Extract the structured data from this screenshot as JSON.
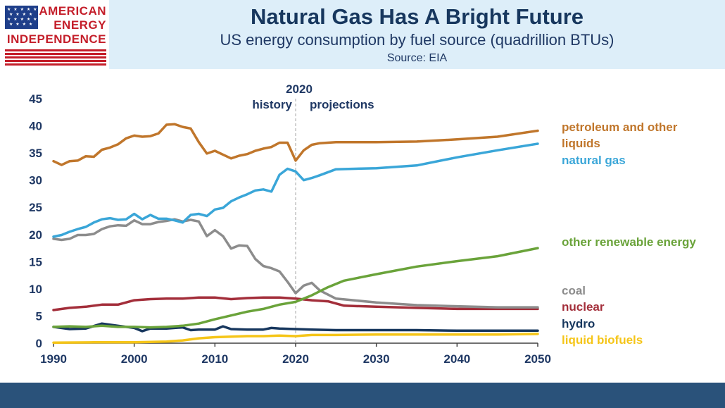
{
  "logo": {
    "line1": "AMERICAN",
    "line2": "ENERGY",
    "line3": "INDEPENDENCE"
  },
  "header": {
    "title": "Natural Gas Has A Bright Future",
    "subtitle": "US energy consumption by fuel source (quadrillion BTUs)",
    "source": "Source: EIA"
  },
  "colors": {
    "petroleum": "#c0762b",
    "natural_gas": "#3aa6d8",
    "renewable": "#6aa33a",
    "coal": "#8c8c8c",
    "nuclear": "#a32e3a",
    "hydro": "#17375e",
    "biofuels": "#f5c518",
    "divider": "#a6a6a6"
  },
  "chart_data": {
    "type": "line",
    "title": "US energy consumption by fuel source (quadrillion BTUs)",
    "xlabel": "",
    "ylabel": "",
    "xlim": [
      1990,
      2050
    ],
    "ylim": [
      0,
      45
    ],
    "x_ticks": [
      "1990",
      "2000",
      "2010",
      "2020",
      "2030",
      "2040",
      "2050"
    ],
    "y_ticks": [
      "0",
      "5",
      "10",
      "15",
      "20",
      "25",
      "30",
      "35",
      "40",
      "45"
    ],
    "annotations": {
      "year": "2020",
      "left": "history",
      "right": "projections",
      "divider_x": 2020
    },
    "series": [
      {
        "name": "petroleum and other liquids",
        "label_lines": [
          "petroleum and other",
          "liquids"
        ],
        "color_key": "petroleum",
        "points": [
          [
            1990,
            33.5
          ],
          [
            1991,
            32.8
          ],
          [
            1992,
            33.5
          ],
          [
            1993,
            33.6
          ],
          [
            1994,
            34.4
          ],
          [
            1995,
            34.3
          ],
          [
            1996,
            35.6
          ],
          [
            1997,
            36.0
          ],
          [
            1998,
            36.6
          ],
          [
            1999,
            37.7
          ],
          [
            2000,
            38.2
          ],
          [
            2001,
            38.0
          ],
          [
            2002,
            38.1
          ],
          [
            2003,
            38.6
          ],
          [
            2004,
            40.2
          ],
          [
            2005,
            40.3
          ],
          [
            2006,
            39.8
          ],
          [
            2007,
            39.5
          ],
          [
            2008,
            37.0
          ],
          [
            2009,
            34.9
          ],
          [
            2010,
            35.4
          ],
          [
            2011,
            34.7
          ],
          [
            2012,
            34.0
          ],
          [
            2013,
            34.5
          ],
          [
            2014,
            34.8
          ],
          [
            2015,
            35.4
          ],
          [
            2016,
            35.8
          ],
          [
            2017,
            36.1
          ],
          [
            2018,
            36.9
          ],
          [
            2019,
            36.9
          ],
          [
            2020,
            33.6
          ],
          [
            2021,
            35.5
          ],
          [
            2022,
            36.5
          ],
          [
            2023,
            36.8
          ],
          [
            2025,
            37.0
          ],
          [
            2030,
            37.0
          ],
          [
            2035,
            37.1
          ],
          [
            2040,
            37.5
          ],
          [
            2045,
            38.0
          ],
          [
            2050,
            39.1
          ]
        ]
      },
      {
        "name": "natural gas",
        "label_lines": [
          "natural gas"
        ],
        "color_key": "natural_gas",
        "points": [
          [
            1990,
            19.6
          ],
          [
            1991,
            19.9
          ],
          [
            1992,
            20.5
          ],
          [
            1993,
            21.0
          ],
          [
            1994,
            21.4
          ],
          [
            1995,
            22.2
          ],
          [
            1996,
            22.8
          ],
          [
            1997,
            23.0
          ],
          [
            1998,
            22.7
          ],
          [
            1999,
            22.8
          ],
          [
            2000,
            23.8
          ],
          [
            2001,
            22.8
          ],
          [
            2002,
            23.6
          ],
          [
            2003,
            22.9
          ],
          [
            2004,
            22.9
          ],
          [
            2005,
            22.6
          ],
          [
            2006,
            22.2
          ],
          [
            2007,
            23.6
          ],
          [
            2008,
            23.8
          ],
          [
            2009,
            23.4
          ],
          [
            2010,
            24.6
          ],
          [
            2011,
            24.9
          ],
          [
            2012,
            26.1
          ],
          [
            2013,
            26.8
          ],
          [
            2014,
            27.4
          ],
          [
            2015,
            28.1
          ],
          [
            2016,
            28.3
          ],
          [
            2017,
            27.9
          ],
          [
            2018,
            31.0
          ],
          [
            2019,
            32.1
          ],
          [
            2020,
            31.6
          ],
          [
            2021,
            30.0
          ],
          [
            2022,
            30.4
          ],
          [
            2023,
            30.9
          ],
          [
            2025,
            32.0
          ],
          [
            2030,
            32.2
          ],
          [
            2035,
            32.7
          ],
          [
            2040,
            34.2
          ],
          [
            2045,
            35.5
          ],
          [
            2050,
            36.7
          ]
        ]
      },
      {
        "name": "other renewable energy",
        "label_lines": [
          "other renewable energy"
        ],
        "color_key": "renewable",
        "points": [
          [
            1990,
            3.0
          ],
          [
            1992,
            3.1
          ],
          [
            1994,
            3.0
          ],
          [
            1996,
            3.2
          ],
          [
            1998,
            3.0
          ],
          [
            2000,
            3.0
          ],
          [
            2002,
            2.9
          ],
          [
            2004,
            3.0
          ],
          [
            2006,
            3.2
          ],
          [
            2008,
            3.6
          ],
          [
            2010,
            4.4
          ],
          [
            2012,
            5.1
          ],
          [
            2014,
            5.8
          ],
          [
            2016,
            6.3
          ],
          [
            2018,
            7.1
          ],
          [
            2020,
            7.6
          ],
          [
            2022,
            8.8
          ],
          [
            2024,
            10.3
          ],
          [
            2026,
            11.5
          ],
          [
            2028,
            12.1
          ],
          [
            2030,
            12.7
          ],
          [
            2035,
            14.1
          ],
          [
            2040,
            15.1
          ],
          [
            2045,
            16.0
          ],
          [
            2050,
            17.5
          ]
        ]
      },
      {
        "name": "coal",
        "label_lines": [
          "coal"
        ],
        "color_key": "coal",
        "points": [
          [
            1990,
            19.2
          ],
          [
            1991,
            19.0
          ],
          [
            1992,
            19.2
          ],
          [
            1993,
            19.9
          ],
          [
            1994,
            19.9
          ],
          [
            1995,
            20.1
          ],
          [
            1996,
            21.0
          ],
          [
            1997,
            21.5
          ],
          [
            1998,
            21.7
          ],
          [
            1999,
            21.6
          ],
          [
            2000,
            22.6
          ],
          [
            2001,
            21.9
          ],
          [
            2002,
            21.9
          ],
          [
            2003,
            22.3
          ],
          [
            2004,
            22.5
          ],
          [
            2005,
            22.8
          ],
          [
            2006,
            22.4
          ],
          [
            2007,
            22.7
          ],
          [
            2008,
            22.4
          ],
          [
            2009,
            19.7
          ],
          [
            2010,
            20.8
          ],
          [
            2011,
            19.7
          ],
          [
            2012,
            17.4
          ],
          [
            2013,
            18.0
          ],
          [
            2014,
            17.9
          ],
          [
            2015,
            15.5
          ],
          [
            2016,
            14.2
          ],
          [
            2017,
            13.8
          ],
          [
            2018,
            13.2
          ],
          [
            2019,
            11.3
          ],
          [
            2020,
            9.2
          ],
          [
            2021,
            10.6
          ],
          [
            2022,
            11.1
          ],
          [
            2023,
            9.7
          ],
          [
            2025,
            8.2
          ],
          [
            2030,
            7.5
          ],
          [
            2035,
            7.0
          ],
          [
            2040,
            6.8
          ],
          [
            2045,
            6.6
          ],
          [
            2050,
            6.6
          ]
        ]
      },
      {
        "name": "nuclear",
        "label_lines": [
          "nuclear"
        ],
        "color_key": "nuclear",
        "points": [
          [
            1990,
            6.1
          ],
          [
            1992,
            6.5
          ],
          [
            1994,
            6.7
          ],
          [
            1996,
            7.1
          ],
          [
            1998,
            7.1
          ],
          [
            2000,
            7.9
          ],
          [
            2002,
            8.1
          ],
          [
            2004,
            8.2
          ],
          [
            2006,
            8.2
          ],
          [
            2008,
            8.4
          ],
          [
            2010,
            8.4
          ],
          [
            2012,
            8.1
          ],
          [
            2014,
            8.3
          ],
          [
            2016,
            8.4
          ],
          [
            2018,
            8.4
          ],
          [
            2020,
            8.2
          ],
          [
            2022,
            7.9
          ],
          [
            2024,
            7.7
          ],
          [
            2026,
            6.9
          ],
          [
            2030,
            6.7
          ],
          [
            2035,
            6.5
          ],
          [
            2040,
            6.3
          ],
          [
            2045,
            6.3
          ],
          [
            2050,
            6.3
          ]
        ]
      },
      {
        "name": "hydro",
        "label_lines": [
          "hydro"
        ],
        "color_key": "hydro",
        "points": [
          [
            1990,
            3.0
          ],
          [
            1992,
            2.6
          ],
          [
            1994,
            2.7
          ],
          [
            1996,
            3.6
          ],
          [
            1998,
            3.2
          ],
          [
            2000,
            2.8
          ],
          [
            2001,
            2.2
          ],
          [
            2002,
            2.7
          ],
          [
            2004,
            2.7
          ],
          [
            2006,
            2.9
          ],
          [
            2007,
            2.4
          ],
          [
            2008,
            2.5
          ],
          [
            2010,
            2.5
          ],
          [
            2011,
            3.1
          ],
          [
            2012,
            2.6
          ],
          [
            2014,
            2.5
          ],
          [
            2016,
            2.5
          ],
          [
            2017,
            2.8
          ],
          [
            2018,
            2.7
          ],
          [
            2020,
            2.6
          ],
          [
            2022,
            2.5
          ],
          [
            2025,
            2.4
          ],
          [
            2030,
            2.4
          ],
          [
            2035,
            2.4
          ],
          [
            2040,
            2.3
          ],
          [
            2045,
            2.3
          ],
          [
            2050,
            2.3
          ]
        ]
      },
      {
        "name": "liquid biofuels",
        "label_lines": [
          "liquid biofuels"
        ],
        "color_key": "biofuels",
        "points": [
          [
            1990,
            0.1
          ],
          [
            1995,
            0.15
          ],
          [
            2000,
            0.15
          ],
          [
            2004,
            0.3
          ],
          [
            2006,
            0.5
          ],
          [
            2008,
            0.9
          ],
          [
            2010,
            1.1
          ],
          [
            2012,
            1.2
          ],
          [
            2014,
            1.3
          ],
          [
            2016,
            1.3
          ],
          [
            2018,
            1.4
          ],
          [
            2020,
            1.3
          ],
          [
            2022,
            1.5
          ],
          [
            2025,
            1.5
          ],
          [
            2030,
            1.6
          ],
          [
            2035,
            1.6
          ],
          [
            2040,
            1.6
          ],
          [
            2045,
            1.6
          ],
          [
            2050,
            1.7
          ]
        ]
      }
    ]
  }
}
